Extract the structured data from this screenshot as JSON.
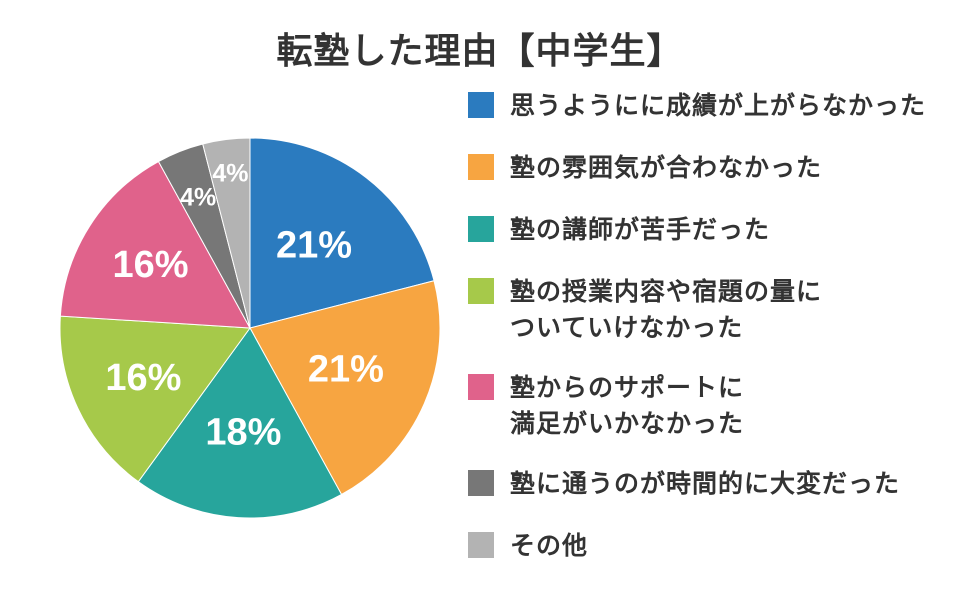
{
  "title": "転塾した理由【中学生】",
  "chart_data": {
    "type": "pie",
    "title": "転塾した理由【中学生】",
    "start_angle_deg": 0,
    "direction": "clockwise",
    "slices": [
      {
        "label": "思うようにに成績が上がらなかった",
        "value": 21,
        "display": "21%",
        "color": "#2b7bbf"
      },
      {
        "label": "塾の雰囲気が合わなかった",
        "value": 21,
        "display": "21%",
        "color": "#f7a541"
      },
      {
        "label": "塾の講師が苦手だった",
        "value": 18,
        "display": "18%",
        "color": "#27a59c"
      },
      {
        "label": "塾の授業内容や宿題の量に\nついていけなかった",
        "value": 16,
        "display": "16%",
        "color": "#a6c94a"
      },
      {
        "label": "塾からのサポートに\n満足がいかなかった",
        "value": 16,
        "display": "16%",
        "color": "#e0628b"
      },
      {
        "label": "塾に通うのが時間的に大変だった",
        "value": 4,
        "display": "4%",
        "color": "#777777"
      },
      {
        "label": "その他",
        "value": 4,
        "display": "4%",
        "color": "#b3b3b3"
      }
    ],
    "legend_position": "right"
  }
}
